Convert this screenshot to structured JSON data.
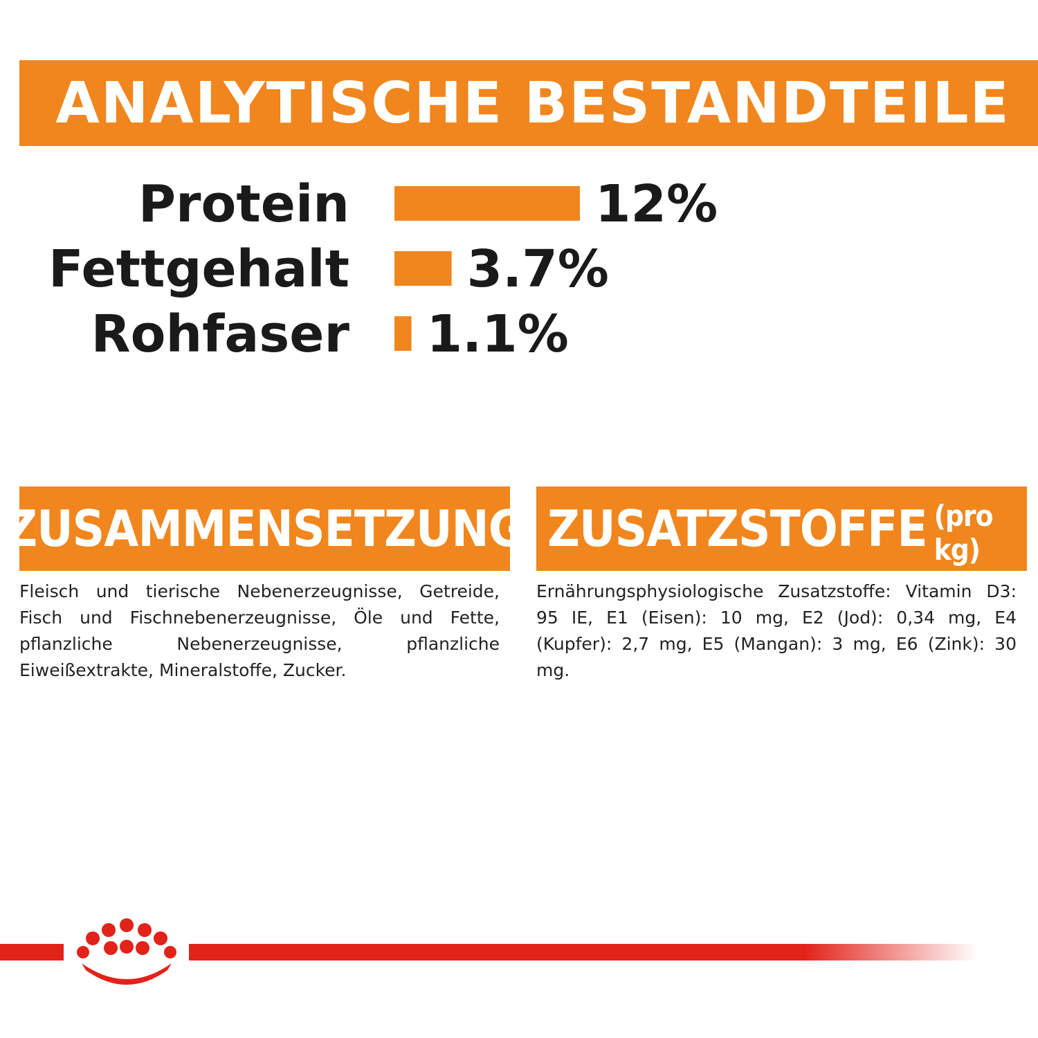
{
  "header": {
    "title": "ANALYTISCHE BESTANDTEILE"
  },
  "chart_data": {
    "type": "bar",
    "orientation": "horizontal",
    "categories": [
      "Protein",
      "Fettgehalt",
      "Rohfaser"
    ],
    "values": [
      12,
      3.7,
      1.1
    ],
    "value_labels": [
      "12%",
      "3.7%",
      "1.1%"
    ],
    "unit": "%",
    "bar_color": "#f0861d",
    "title": "ANALYTISCHE BESTANDTEILE",
    "xlabel": "",
    "ylabel": "",
    "grid": false
  },
  "composition": {
    "title": "ZUSAMMENSETZUNG",
    "text": "Fleisch und tierische Nebenerzeugnisse, Getreide, Fisch und Fischnebenerzeugnisse, Öle und Fette, pflanzliche Nebenerzeugnisse, pflanzliche Eiweißextrakte, Mineralstoffe, Zucker."
  },
  "additives": {
    "title": "ZUSATZSTOFFE",
    "unit": "(pro kg)",
    "text": "Ernährungsphysiologische Zusatzstoffe: Vitamin D3: 95 IE, E1 (Eisen): 10 mg, E2 (Jod): 0,34 mg, E4 (Kupfer): 2,7 mg, E5 (Mangan): 3 mg, E6 (Zink): 30 mg."
  },
  "colors": {
    "accent": "#f0861d",
    "brand_red": "#e2231a"
  },
  "footer": {
    "logo": "crown-logo"
  }
}
